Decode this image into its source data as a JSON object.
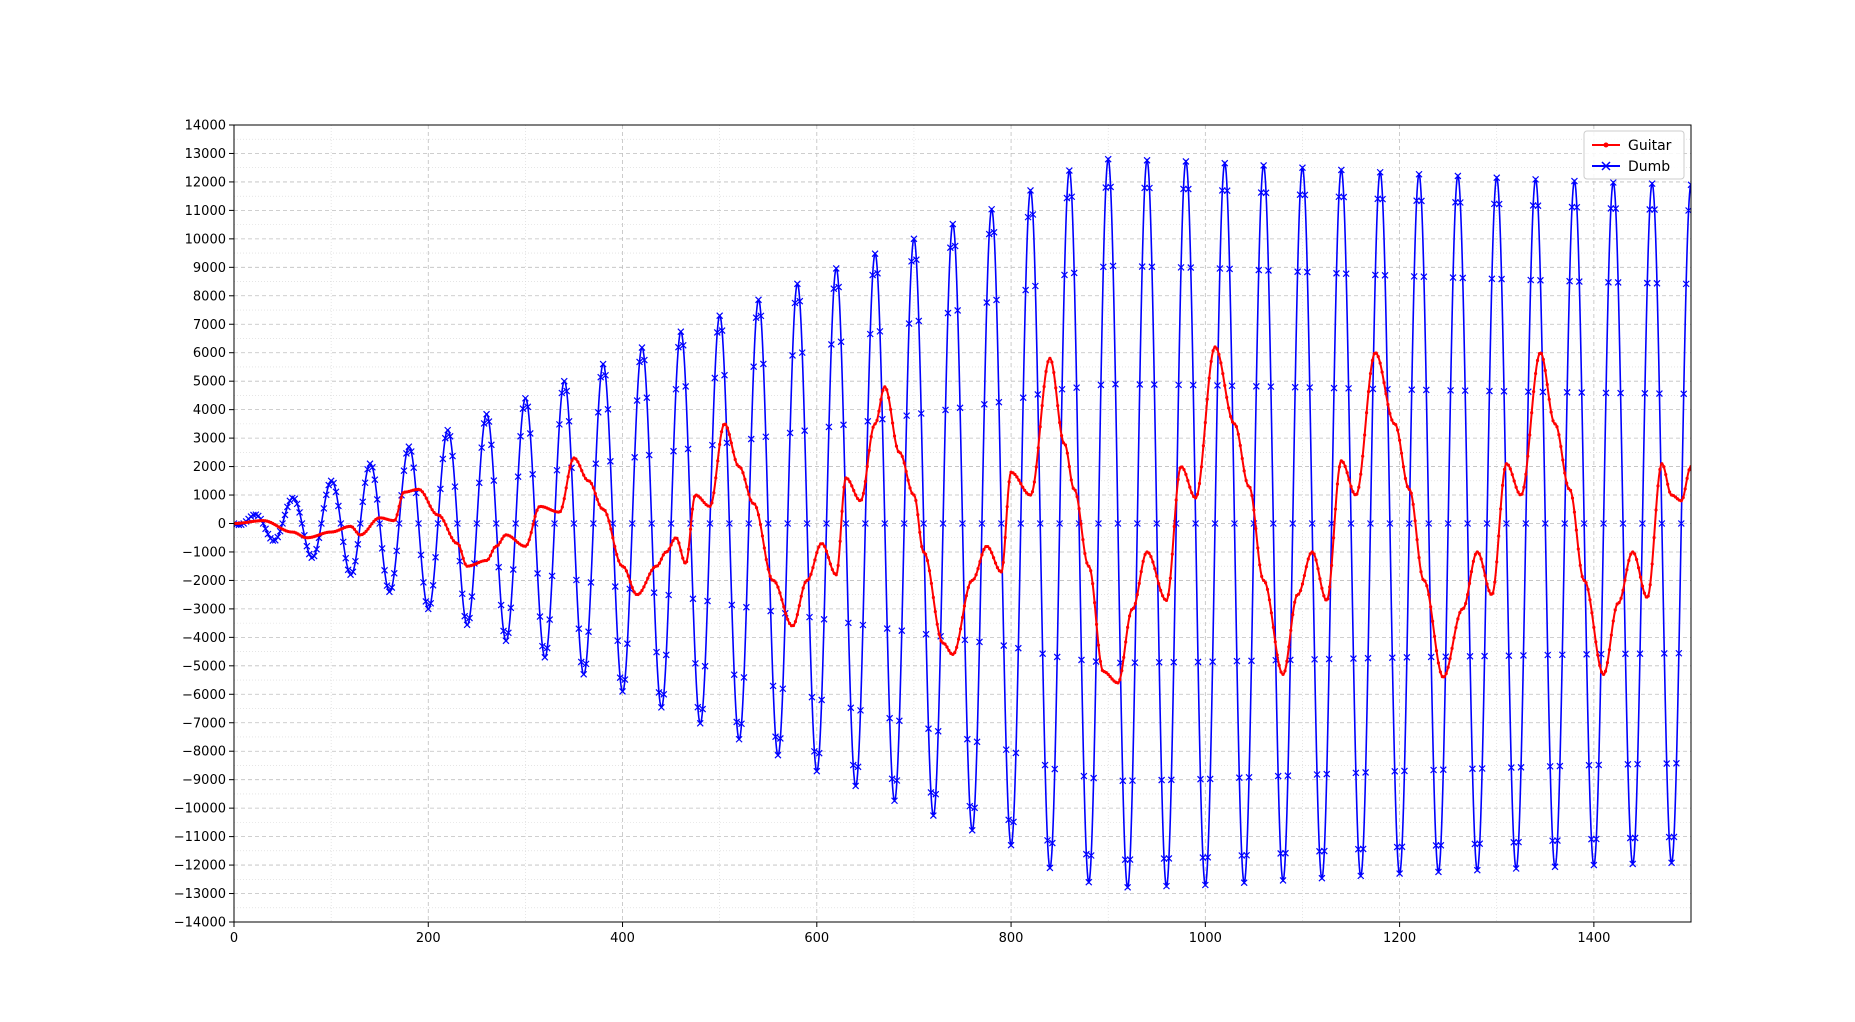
{
  "chart_data": {
    "type": "line",
    "title": "",
    "xlabel": "",
    "ylabel": "",
    "xlim": [
      0,
      1500
    ],
    "ylim": [
      -14000,
      14000
    ],
    "x_ticks": [
      0,
      200,
      400,
      600,
      800,
      1000,
      1200,
      1400
    ],
    "x_tick_labels": [
      "0",
      "200",
      "400",
      "600",
      "800",
      "1000",
      "1200",
      "1400"
    ],
    "y_ticks": [
      -14000,
      -13000,
      -12000,
      -11000,
      -10000,
      -9000,
      -8000,
      -7000,
      -6000,
      -5000,
      -4000,
      -3000,
      -2000,
      -1000,
      0,
      1000,
      2000,
      3000,
      4000,
      5000,
      6000,
      7000,
      8000,
      9000,
      10000,
      11000,
      12000,
      13000,
      14000
    ],
    "y_tick_labels": [
      "−14000",
      "−13000",
      "−12000",
      "−11000",
      "−10000",
      "−9000",
      "−8000",
      "−7000",
      "−6000",
      "−5000",
      "−4000",
      "−3000",
      "−2000",
      "−1000",
      "0",
      "1000",
      "2000",
      "3000",
      "4000",
      "5000",
      "6000",
      "7000",
      "8000",
      "9000",
      "10000",
      "11000",
      "12000",
      "13000",
      "14000"
    ],
    "grid": true,
    "legend_position": "top-right",
    "series": [
      {
        "name": "Guitar",
        "color": "#ff0000",
        "marker": "dot",
        "x": [
          0,
          30,
          60,
          75,
          100,
          120,
          130,
          150,
          165,
          175,
          190,
          210,
          230,
          240,
          260,
          270,
          280,
          300,
          315,
          335,
          350,
          365,
          380,
          400,
          415,
          435,
          445,
          455,
          465,
          475,
          490,
          505,
          520,
          535,
          555,
          575,
          590,
          605,
          620,
          630,
          645,
          660,
          670,
          685,
          700,
          710,
          730,
          740,
          760,
          775,
          790,
          800,
          820,
          840,
          855,
          865,
          880,
          895,
          910,
          925,
          940,
          960,
          975,
          990,
          1010,
          1030,
          1045,
          1060,
          1080,
          1095,
          1110,
          1125,
          1140,
          1155,
          1175,
          1195,
          1210,
          1225,
          1245,
          1265,
          1280,
          1295,
          1310,
          1325,
          1345,
          1360,
          1375,
          1390,
          1410,
          1425,
          1440,
          1455,
          1470,
          1480,
          1490,
          1500
        ],
        "y": [
          0,
          100,
          -300,
          -500,
          -300,
          -100,
          -400,
          200,
          100,
          1100,
          1200,
          300,
          -700,
          -1500,
          -1300,
          -800,
          -400,
          -800,
          600,
          400,
          2300,
          1500,
          500,
          -1500,
          -2500,
          -1500,
          -1000,
          -500,
          -1400,
          1000,
          600,
          3500,
          2000,
          700,
          -2000,
          -3600,
          -2000,
          -700,
          -1800,
          1600,
          800,
          3500,
          4800,
          2500,
          1000,
          -1000,
          -4200,
          -4600,
          -2000,
          -800,
          -1700,
          1800,
          1000,
          5800,
          2800,
          1200,
          -1500,
          -5200,
          -5600,
          -3000,
          -1000,
          -2700,
          2000,
          900,
          6200,
          3500,
          1300,
          -2000,
          -5300,
          -2500,
          -1000,
          -2700,
          2200,
          1000,
          6000,
          3500,
          1200,
          -2000,
          -5400,
          -3000,
          -1000,
          -2500,
          2100,
          1000,
          6000,
          3500,
          1200,
          -2000,
          -5300,
          -2800,
          -1000,
          -2600,
          2100,
          1000,
          800,
          2000
        ]
      },
      {
        "name": "Dumb",
        "color": "#0000ff",
        "marker": "x",
        "period": 40,
        "phase_deg": 90,
        "envelope": [
          [
            0,
            0
          ],
          [
            50,
            750
          ],
          [
            100,
            1500
          ],
          [
            200,
            3000
          ],
          [
            300,
            4400
          ],
          [
            400,
            5900
          ],
          [
            500,
            7300
          ],
          [
            600,
            8700
          ],
          [
            700,
            10000
          ],
          [
            800,
            11300
          ],
          [
            850,
            12300
          ],
          [
            900,
            12800
          ],
          [
            1000,
            12700
          ],
          [
            1200,
            12300
          ],
          [
            1400,
            12000
          ],
          [
            1500,
            11900
          ]
        ]
      }
    ]
  }
}
